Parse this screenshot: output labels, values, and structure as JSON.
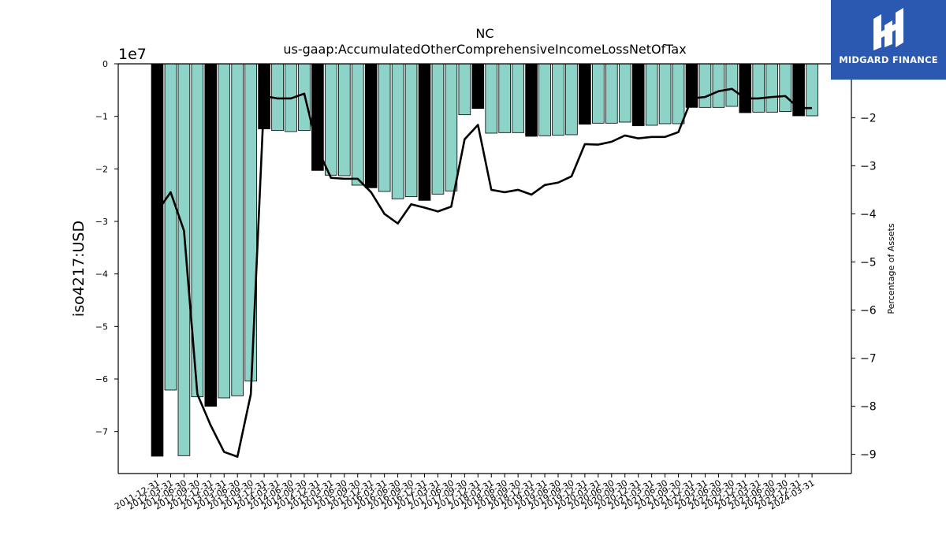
{
  "chart_data": {
    "type": "bar+line",
    "title": "NC",
    "subtitle": "us-gaap:AccumulatedOtherComprehensiveIncomeLossNetOfTax",
    "ylabel": "iso4217:USD",
    "y_offset_label": "1e7",
    "y2label": "Percentage of Assets",
    "ylim": [
      -7.8,
      0
    ],
    "y2lim": [
      -9.4,
      -0.88
    ],
    "y_ticks": [
      "0",
      "−1",
      "−2",
      "−3",
      "−4",
      "−5",
      "−6",
      "−7"
    ],
    "y2_ticks": [
      "−2",
      "−3",
      "−4",
      "−5",
      "−6",
      "−7",
      "−8",
      "−9"
    ],
    "bar_colors": {
      "annual": "#000000",
      "quarterly": "#8dd3c7"
    },
    "categories": [
      "2011-12-31",
      "2012-03-31",
      "2012-06-30",
      "2012-09-30",
      "2012-12-31",
      "2013-03-31",
      "2013-06-30",
      "2013-09-30",
      "2013-12-31",
      "2014-03-31",
      "2014-06-30",
      "2014-09-30",
      "2014-12-31",
      "2015-03-31",
      "2015-06-30",
      "2015-09-30",
      "2015-12-31",
      "2016-03-31",
      "2016-06-30",
      "2016-09-30",
      "2016-12-31",
      "2017-03-31",
      "2017-06-30",
      "2017-09-30",
      "2017-12-31",
      "2018-03-31",
      "2018-06-30",
      "2018-09-30",
      "2018-12-31",
      "2019-03-31",
      "2019-06-30",
      "2019-09-30",
      "2019-12-31",
      "2020-03-31",
      "2020-06-30",
      "2020-09-30",
      "2020-12-31",
      "2021-03-31",
      "2021-06-30",
      "2021-09-30",
      "2021-12-31",
      "2022-03-31",
      "2022-06-30",
      "2022-09-30",
      "2022-12-31",
      "2023-03-31",
      "2023-06-30",
      "2023-09-30",
      "2023-12-31",
      "2024-03-31"
    ],
    "annual": [
      true,
      false,
      false,
      false,
      true,
      false,
      false,
      false,
      true,
      false,
      false,
      false,
      true,
      false,
      false,
      false,
      true,
      false,
      false,
      false,
      true,
      false,
      false,
      false,
      true,
      false,
      false,
      false,
      true,
      false,
      false,
      false,
      true,
      false,
      false,
      false,
      true,
      false,
      false,
      false,
      true,
      false,
      false,
      false,
      true,
      false,
      false,
      false,
      true,
      false
    ],
    "series": [
      {
        "name": "iso4217:USD",
        "axis": "left",
        "values": [
          -7.47,
          -6.21,
          -7.46,
          -6.34,
          -6.52,
          -6.36,
          -6.32,
          -6.04,
          -1.24,
          -1.27,
          -1.29,
          -1.27,
          -2.03,
          -2.12,
          -2.13,
          -2.31,
          -2.36,
          -2.43,
          -2.57,
          -2.53,
          -2.6,
          -2.48,
          -2.42,
          -0.97,
          -0.85,
          -1.32,
          -1.31,
          -1.31,
          -1.38,
          -1.37,
          -1.36,
          -1.35,
          -1.15,
          -1.13,
          -1.13,
          -1.11,
          -1.18,
          -1.17,
          -1.14,
          -1.14,
          -0.83,
          -0.83,
          -0.83,
          -0.81,
          -0.93,
          -0.92,
          -0.92,
          -0.91,
          -0.99,
          -0.99
        ]
      },
      {
        "name": "Percentage of Assets",
        "axis": "right",
        "values": [
          -3.95,
          -3.55,
          -4.35,
          -7.75,
          -8.4,
          -8.95,
          -9.05,
          -7.75,
          -1.55,
          -1.6,
          -1.6,
          -1.5,
          -2.65,
          -3.25,
          -3.27,
          -3.27,
          -3.55,
          -4.0,
          -4.2,
          -3.8,
          -3.87,
          -3.95,
          -3.85,
          -2.45,
          -2.15,
          -3.5,
          -3.55,
          -3.5,
          -3.6,
          -3.4,
          -3.35,
          -3.22,
          -2.55,
          -2.56,
          -2.5,
          -2.37,
          -2.43,
          -2.4,
          -2.4,
          -2.3,
          -1.6,
          -1.57,
          -1.45,
          -1.4,
          -1.6,
          -1.6,
          -1.57,
          -1.55,
          -1.8,
          -1.8
        ]
      }
    ],
    "grid": false,
    "legend": "none"
  },
  "logo": {
    "text": "MIDGARD FINANCE",
    "bg": "#2b58b0"
  }
}
